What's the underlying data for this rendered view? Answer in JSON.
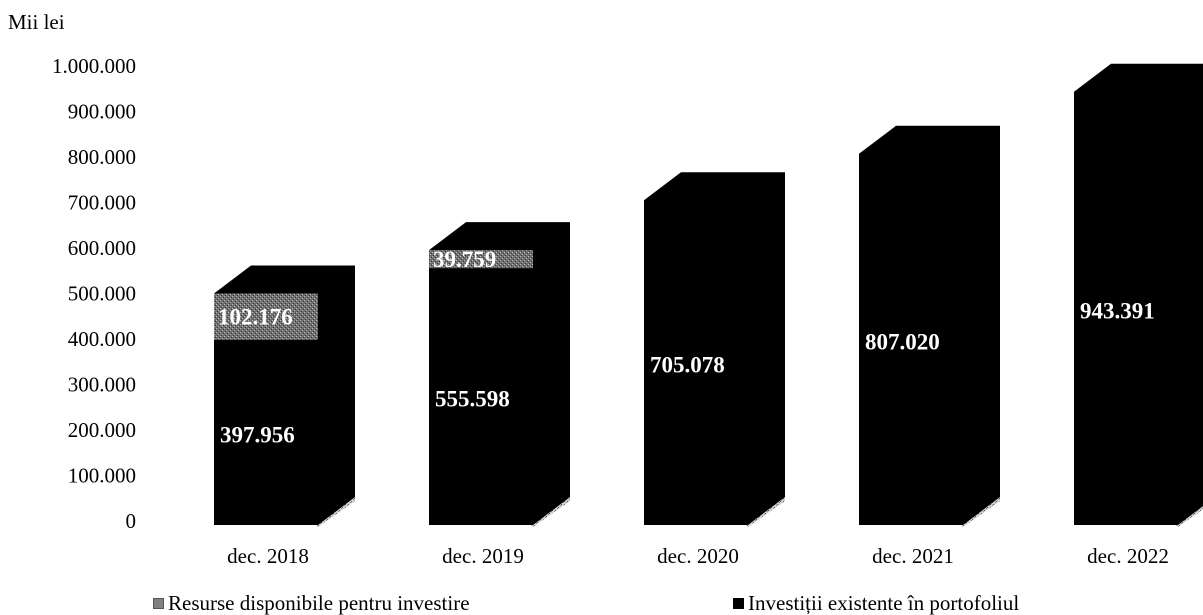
{
  "chart_data": {
    "type": "bar",
    "stacked": true,
    "three_d": true,
    "ylabel": "Mii lei",
    "ylim": [
      0,
      1000000
    ],
    "yticks": [
      "0",
      "100.000",
      "200.000",
      "300.000",
      "400.000",
      "500.000",
      "600.000",
      "700.000",
      "800.000",
      "900.000",
      "1.000.000"
    ],
    "categories": [
      "dec. 2018",
      "dec. 2019",
      "dec. 2020",
      "dec. 2021",
      "dec. 2022"
    ],
    "series": [
      {
        "name": "Investiții existente în portofoliul",
        "color": "#000000",
        "values": [
          397956,
          555598,
          705078,
          807020,
          943391
        ],
        "labels": [
          "397.956",
          "555.598",
          "705.078",
          "807.020",
          "943.391"
        ]
      },
      {
        "name": "Resurse disponibile pentru investire",
        "color": "#808080",
        "values": [
          102176,
          39759,
          0,
          0,
          0
        ],
        "labels": [
          "102.176",
          "39.759",
          "",
          "",
          ""
        ]
      }
    ],
    "grid": false,
    "legend_position": "bottom"
  }
}
